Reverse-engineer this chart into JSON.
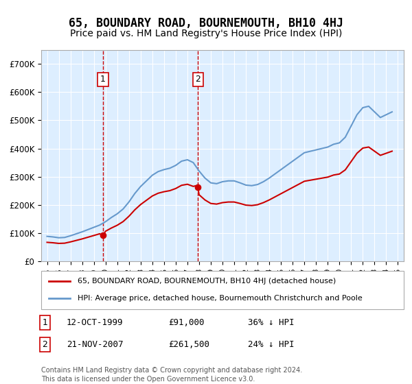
{
  "title": "65, BOUNDARY ROAD, BOURNEMOUTH, BH10 4HJ",
  "subtitle": "Price paid vs. HM Land Registry's House Price Index (HPI)",
  "title_fontsize": 12,
  "subtitle_fontsize": 10,
  "background_color": "#ffffff",
  "plot_bg_color": "#ddeeff",
  "grid_color": "#ffffff",
  "ylabel": "",
  "xlim_start": 1994.5,
  "xlim_end": 2025.5,
  "ylim": [
    0,
    750000
  ],
  "yticks": [
    0,
    100000,
    200000,
    300000,
    400000,
    500000,
    600000,
    700000
  ],
  "ytick_labels": [
    "£0",
    "£100K",
    "£200K",
    "£300K",
    "£400K",
    "£500K",
    "£600K",
    "£700K"
  ],
  "sale1_x": 1999.79,
  "sale1_y": 91000,
  "sale2_x": 2007.9,
  "sale2_y": 261500,
  "sale1_label": "1",
  "sale2_label": "2",
  "red_line_color": "#cc0000",
  "blue_line_color": "#6699cc",
  "vline_color": "#cc0000",
  "legend_line1": "65, BOUNDARY ROAD, BOURNEMOUTH, BH10 4HJ (detached house)",
  "legend_line2": "HPI: Average price, detached house, Bournemouth Christchurch and Poole",
  "footer1": "Contains HM Land Registry data © Crown copyright and database right 2024.",
  "footer2": "This data is licensed under the Open Government Licence v3.0.",
  "table_rows": [
    {
      "label": "1",
      "date": "12-OCT-1999",
      "price": "£91,000",
      "change": "36% ↓ HPI"
    },
    {
      "label": "2",
      "date": "21-NOV-2007",
      "price": "£261,500",
      "change": "24% ↓ HPI"
    }
  ]
}
